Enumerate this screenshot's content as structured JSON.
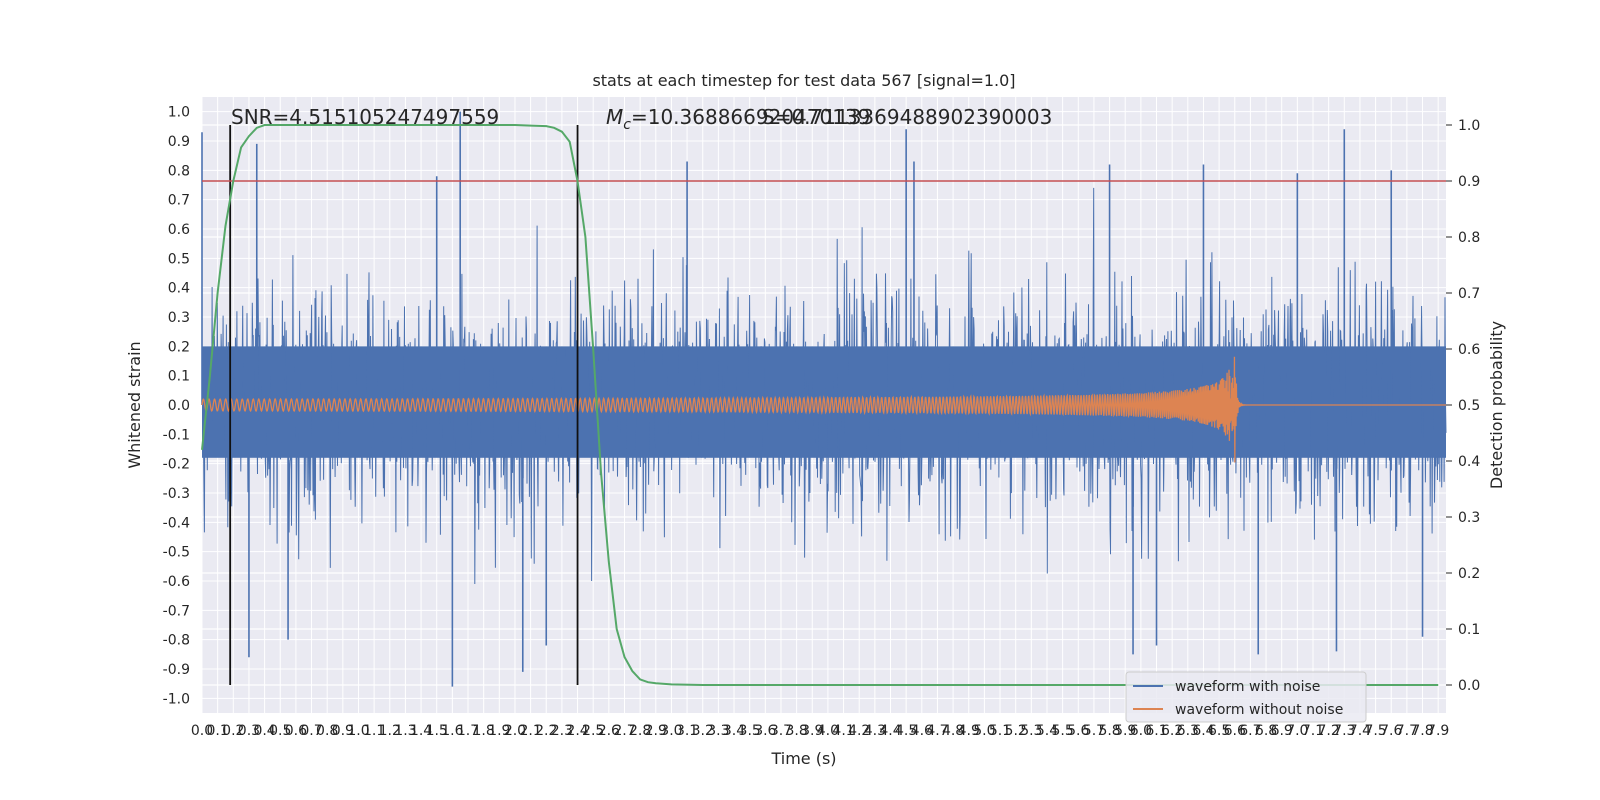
{
  "chart_data": {
    "type": "line",
    "title": "stats at each timestep for test data 567 [signal=1.0]",
    "xlabel": "Time (s)",
    "ylabel_left": "Whitened strain",
    "ylabel_right": "Detection probability",
    "xlim": [
      0.0,
      7.95
    ],
    "ylim_left": [
      -1.05,
      1.05
    ],
    "ylim_right": [
      -0.05,
      1.05
    ],
    "x_ticks": [
      0.0,
      0.1,
      0.2,
      0.3,
      0.4,
      0.5,
      0.6,
      0.7,
      0.8,
      0.9,
      1.0,
      1.1,
      1.2,
      1.3,
      1.4,
      1.5,
      1.6,
      1.7,
      1.8,
      1.9,
      2.0,
      2.1,
      2.2,
      2.3,
      2.4,
      2.5,
      2.6,
      2.7,
      2.8,
      2.9,
      3.0,
      3.1,
      3.2,
      3.3,
      3.4,
      3.5,
      3.6,
      3.7,
      3.8,
      3.9,
      4.0,
      4.1,
      4.2,
      4.3,
      4.4,
      4.5,
      4.6,
      4.7,
      4.8,
      4.9,
      5.0,
      5.1,
      5.2,
      5.3,
      5.4,
      5.5,
      5.6,
      5.7,
      5.8,
      5.9,
      6.0,
      6.1,
      6.2,
      6.3,
      6.4,
      6.5,
      6.6,
      6.7,
      6.8,
      6.9,
      7.0,
      7.1,
      7.2,
      7.3,
      7.4,
      7.5,
      7.6,
      7.7,
      7.8,
      7.9
    ],
    "y_ticks_left": [
      -1.0,
      -0.9,
      -0.8,
      -0.7,
      -0.6,
      -0.5,
      -0.4,
      -0.3,
      -0.2,
      -0.1,
      0.0,
      0.1,
      0.2,
      0.3,
      0.4,
      0.5,
      0.6,
      0.7,
      0.8,
      0.9,
      1.0
    ],
    "y_ticks_right": [
      0.0,
      0.1,
      0.2,
      0.3,
      0.4,
      0.5,
      0.6,
      0.7,
      0.8,
      0.9,
      1.0
    ],
    "grid": true,
    "legend_position": "lower-right",
    "annotations": {
      "snr": "SNR=4.515105247497559",
      "mc_prefix": "M",
      "mc_sub": "c",
      "mc_value": "=10.368866920470139",
      "overlap": "S=0.7113369488902390003"
    },
    "threshold_line": {
      "axis": "right",
      "y": 0.9,
      "color": "#c44e52"
    },
    "vertical_lines_x": [
      0.18,
      2.4
    ],
    "series": [
      {
        "name": "waveform with noise",
        "axis": "left",
        "color": "#4c72b0",
        "kind": "noise",
        "band_upper": 0.2,
        "band_lower": -0.18,
        "peaks": [
          {
            "x": 0.0,
            "y": 0.93
          },
          {
            "x": 0.35,
            "y": 0.89
          },
          {
            "x": 1.65,
            "y": 1.0
          },
          {
            "x": 1.5,
            "y": 0.78
          },
          {
            "x": 3.1,
            "y": 0.83
          },
          {
            "x": 4.5,
            "y": 0.94
          },
          {
            "x": 4.55,
            "y": 0.83
          },
          {
            "x": 5.8,
            "y": 0.82
          },
          {
            "x": 6.4,
            "y": 0.82
          },
          {
            "x": 7.3,
            "y": 0.94
          },
          {
            "x": 7.0,
            "y": 0.79
          },
          {
            "x": 7.6,
            "y": 0.8
          }
        ],
        "troughs": [
          {
            "x": 0.3,
            "y": -0.86
          },
          {
            "x": 0.55,
            "y": -0.8
          },
          {
            "x": 1.6,
            "y": -0.96
          },
          {
            "x": 2.05,
            "y": -0.91
          },
          {
            "x": 2.2,
            "y": -0.82
          },
          {
            "x": 5.95,
            "y": -0.85
          },
          {
            "x": 6.1,
            "y": -0.82
          },
          {
            "x": 6.75,
            "y": -0.85
          },
          {
            "x": 7.25,
            "y": -0.84
          },
          {
            "x": 7.8,
            "y": -0.79
          }
        ]
      },
      {
        "name": "waveform without noise",
        "axis": "left",
        "color": "#dd8452",
        "kind": "chirp",
        "merger_x": 6.6,
        "peak_amplitude": 0.21
      },
      {
        "name": "",
        "axis": "right",
        "color": "#55a868",
        "kind": "probability",
        "x": [
          0.0,
          0.05,
          0.1,
          0.15,
          0.2,
          0.25,
          0.3,
          0.35,
          0.4,
          0.45,
          0.5,
          0.6,
          0.8,
          1.0,
          1.5,
          2.0,
          2.1,
          2.2,
          2.25,
          2.3,
          2.35,
          2.4,
          2.45,
          2.5,
          2.55,
          2.6,
          2.65,
          2.7,
          2.75,
          2.8,
          2.85,
          2.9,
          3.0,
          3.2,
          3.5,
          4.0,
          5.0,
          6.0,
          7.0,
          7.9
        ],
        "y": [
          0.42,
          0.55,
          0.7,
          0.82,
          0.9,
          0.96,
          0.98,
          0.995,
          1.0,
          1.0,
          1.0,
          1.0,
          1.0,
          1.0,
          1.0,
          1.0,
          0.999,
          0.998,
          0.995,
          0.988,
          0.97,
          0.9,
          0.8,
          0.6,
          0.38,
          0.22,
          0.1,
          0.05,
          0.025,
          0.01,
          0.005,
          0.003,
          0.001,
          0.0,
          0.0,
          0.0,
          0.0,
          0.0,
          0.0,
          0.0
        ]
      }
    ]
  }
}
